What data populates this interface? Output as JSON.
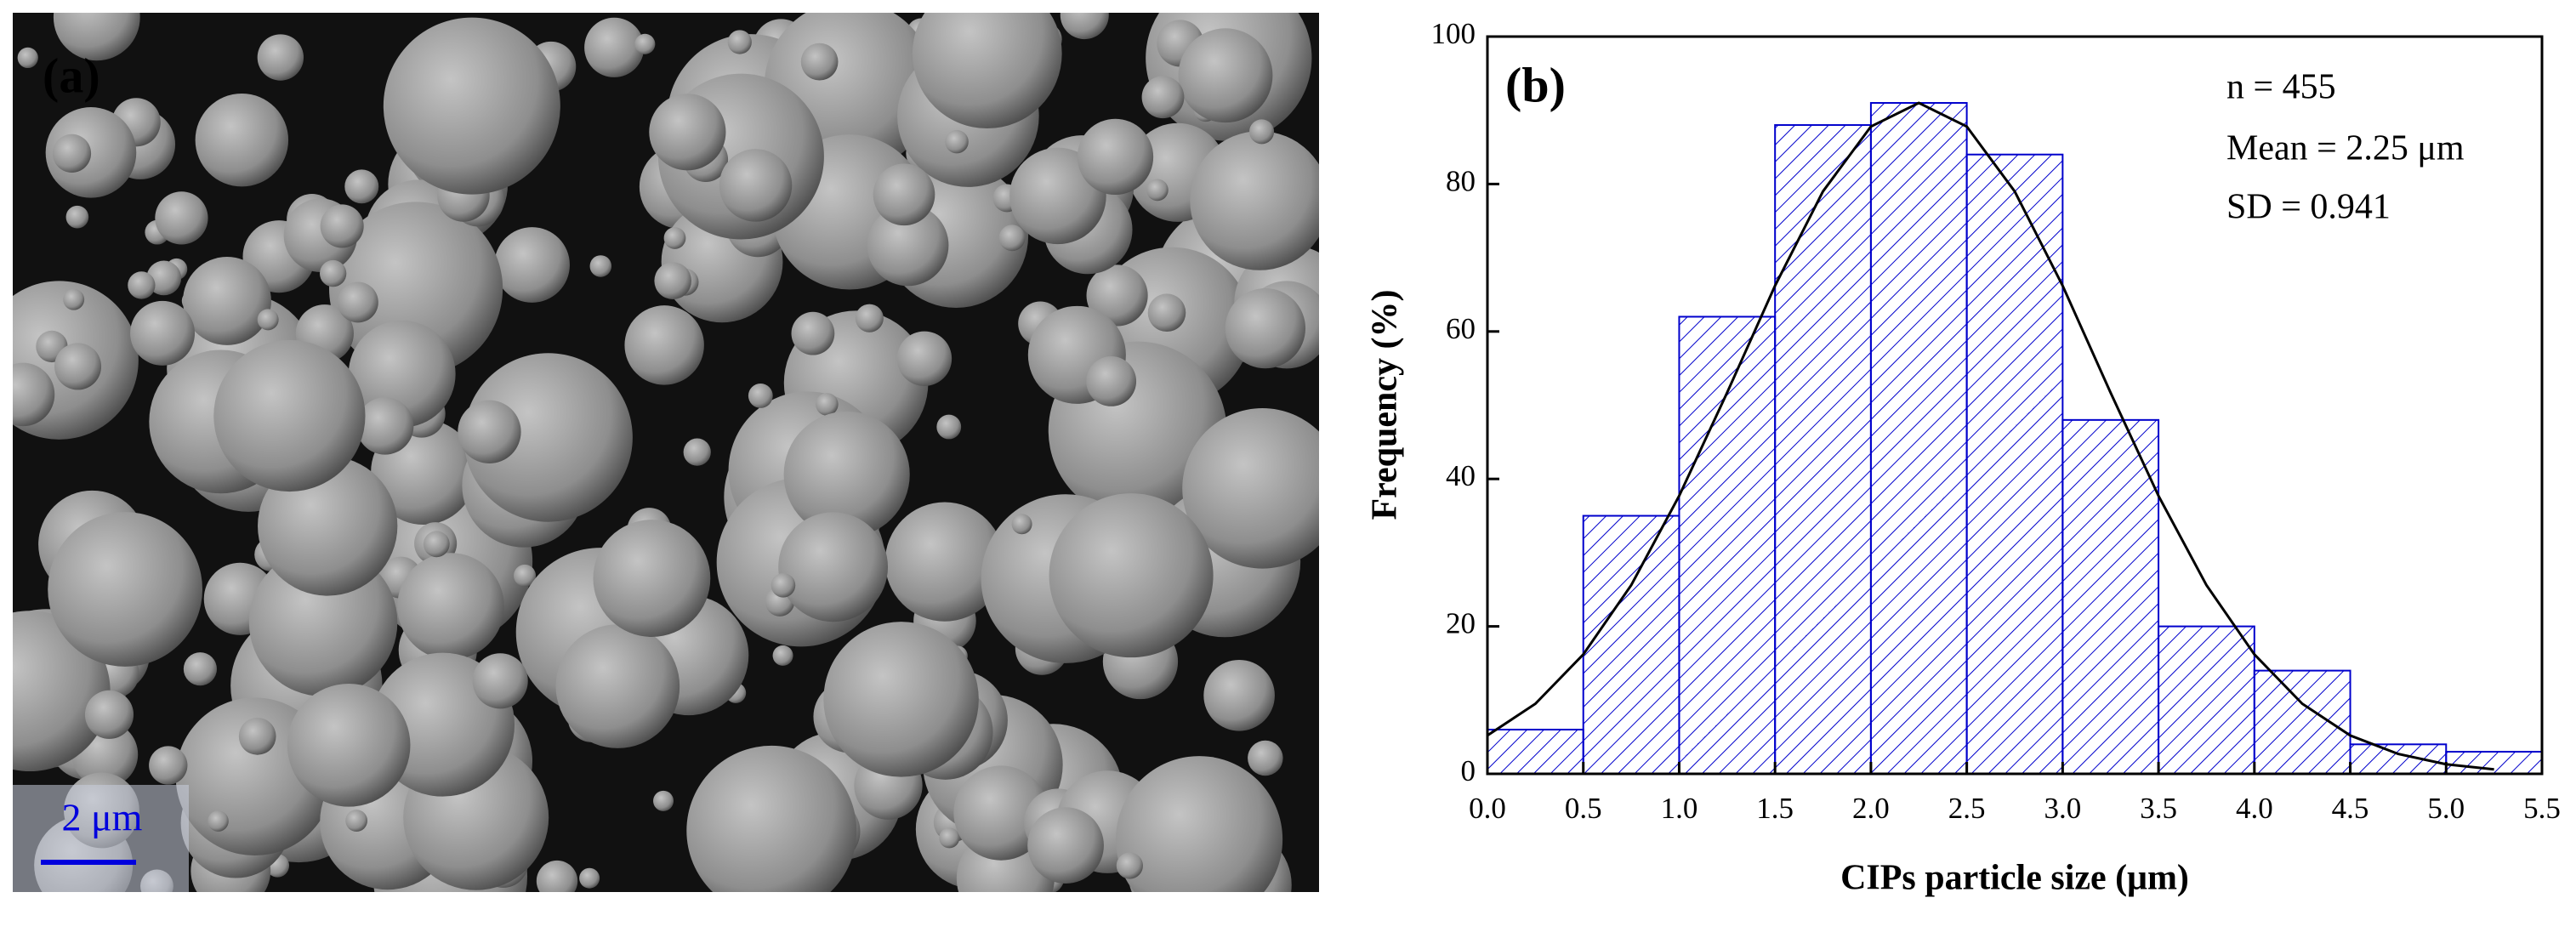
{
  "image_panel": {
    "label": "(a)",
    "scale_bar": "2 μm"
  },
  "chart_data": {
    "type": "histogram",
    "x_label": "CIPs particle size (μm)",
    "y_label": "Frequency (%)",
    "annotations": [
      "(b)",
      "n = 455",
      "Mean = 2.25 μm",
      "SD = 0.941"
    ],
    "bins": [
      0,
      0.5,
      1,
      1.5,
      2,
      2.5,
      3,
      3.5,
      4,
      4.5,
      5,
      5.5
    ],
    "counts": [
      6,
      35,
      62,
      88,
      91,
      84,
      48,
      20,
      14,
      4,
      3
    ],
    "color": "#0000cc",
    "fit": {
      "color": "#000000",
      "x": [
        0,
        0.25,
        0.5,
        0.75,
        1,
        1.25,
        1.5,
        1.75,
        2,
        2.25,
        2.5,
        2.75,
        3,
        3.25,
        3.5,
        3.75,
        4,
        4.25,
        4.5,
        4.75,
        5,
        5.25
      ],
      "values": [
        5.2,
        9.5,
        16.2,
        25.6,
        37.7,
        51.7,
        66.2,
        79.0,
        87.8,
        91,
        87.8,
        79.0,
        66.2,
        51.7,
        37.7,
        25.6,
        16.2,
        9.5,
        5.2,
        2.7,
        1.3,
        0.6
      ]
    },
    "xlim": [
      0,
      5.5
    ],
    "xticks": [
      {
        "value": 0,
        "label": "0.0"
      },
      {
        "value": 0.5,
        "label": "0.5"
      },
      {
        "value": 1,
        "label": "1.0"
      },
      {
        "value": 1.5,
        "label": "1.5"
      },
      {
        "value": 2,
        "label": "2.0"
      },
      {
        "value": 2.5,
        "label": "2.5"
      },
      {
        "value": 3,
        "label": "3.0"
      },
      {
        "value": 3.5,
        "label": "3.5"
      },
      {
        "value": 4,
        "label": "4.0"
      },
      {
        "value": 4.5,
        "label": "4.5"
      },
      {
        "value": 5,
        "label": "5.0"
      },
      {
        "value": 5.5,
        "label": "5.5"
      }
    ],
    "ylim": [
      0,
      100
    ],
    "yticks": [
      0,
      20,
      40,
      60,
      80,
      100
    ]
  }
}
